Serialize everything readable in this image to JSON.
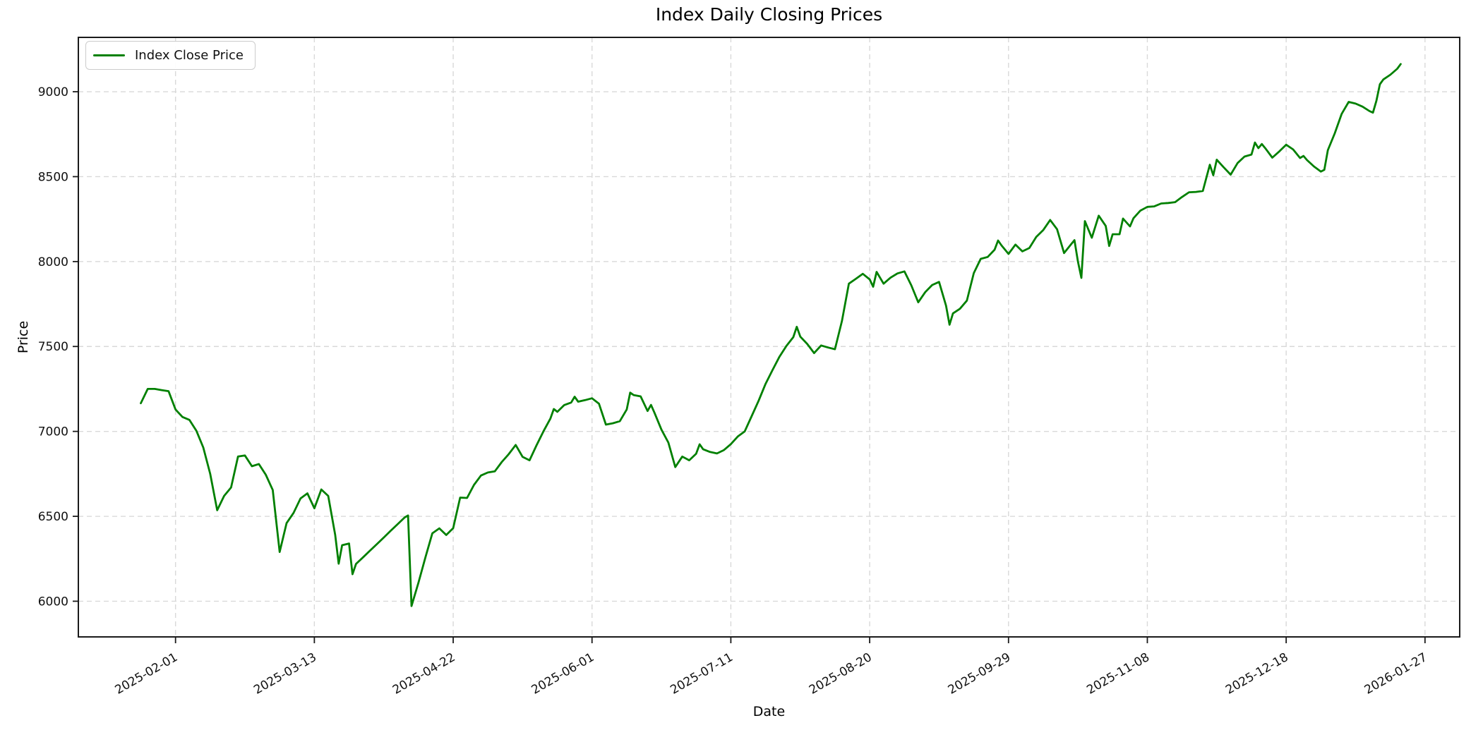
{
  "chart_data": {
    "type": "line",
    "title": "Index Daily Closing Prices",
    "xlabel": "Date",
    "ylabel": "Price",
    "legend_label": "Index Close Price",
    "legend_position": "upper left",
    "line_color": "#008000",
    "line_width": 2.8,
    "grid": "dashed",
    "grid_color": "#d9d9d9",
    "spine_color": "#1a1a1a",
    "background": "#ffffff",
    "ylim": [
      5790,
      9320
    ],
    "xlim": [
      "2025-01-04",
      "2026-02-06"
    ],
    "y_ticks": [
      6000,
      6500,
      7000,
      7500,
      8000,
      8500,
      9000
    ],
    "x_ticks": [
      "2025-02-01",
      "2025-03-13",
      "2025-04-22",
      "2025-06-01",
      "2025-07-11",
      "2025-08-20",
      "2025-09-29",
      "2025-11-08",
      "2025-12-18",
      "2026-01-27"
    ],
    "x_tick_rotation": 30,
    "series": [
      {
        "name": "Index Close Price",
        "points": [
          [
            "2025-01-22",
            7166
          ],
          [
            "2025-01-24",
            7250
          ],
          [
            "2025-01-26",
            7250
          ],
          [
            "2025-01-28",
            7243
          ],
          [
            "2025-01-30",
            7237
          ],
          [
            "2025-02-01",
            7129
          ],
          [
            "2025-02-03",
            7085
          ],
          [
            "2025-02-05",
            7068
          ],
          [
            "2025-02-07",
            7004
          ],
          [
            "2025-02-09",
            6905
          ],
          [
            "2025-02-11",
            6750
          ],
          [
            "2025-02-13",
            6536
          ],
          [
            "2025-02-15",
            6620
          ],
          [
            "2025-02-17",
            6670
          ],
          [
            "2025-02-19",
            6852
          ],
          [
            "2025-02-21",
            6858
          ],
          [
            "2025-02-23",
            6795
          ],
          [
            "2025-02-25",
            6808
          ],
          [
            "2025-02-27",
            6745
          ],
          [
            "2025-03-01",
            6655
          ],
          [
            "2025-03-03",
            6290
          ],
          [
            "2025-03-05",
            6460
          ],
          [
            "2025-03-07",
            6520
          ],
          [
            "2025-03-09",
            6605
          ],
          [
            "2025-03-11",
            6635
          ],
          [
            "2025-03-13",
            6547
          ],
          [
            "2025-03-15",
            6658
          ],
          [
            "2025-03-17",
            6620
          ],
          [
            "2025-03-19",
            6390
          ],
          [
            "2025-03-20",
            6221
          ],
          [
            "2025-03-21",
            6330
          ],
          [
            "2025-03-23",
            6340
          ],
          [
            "2025-03-24",
            6159
          ],
          [
            "2025-03-25",
            6220
          ],
          [
            "2025-03-27",
            6258
          ],
          [
            "2025-03-29",
            6297
          ],
          [
            "2025-03-31",
            6336
          ],
          [
            "2025-04-02",
            6375
          ],
          [
            "2025-04-04",
            6415
          ],
          [
            "2025-04-06",
            6454
          ],
          [
            "2025-04-08",
            6493
          ],
          [
            "2025-04-09",
            6505
          ],
          [
            "2025-04-10",
            5972
          ],
          [
            "2025-04-12",
            6110
          ],
          [
            "2025-04-14",
            6258
          ],
          [
            "2025-04-16",
            6400
          ],
          [
            "2025-04-18",
            6429
          ],
          [
            "2025-04-20",
            6390
          ],
          [
            "2025-04-22",
            6430
          ],
          [
            "2025-04-24",
            6610
          ],
          [
            "2025-04-26",
            6608
          ],
          [
            "2025-04-28",
            6685
          ],
          [
            "2025-04-30",
            6740
          ],
          [
            "2025-05-02",
            6758
          ],
          [
            "2025-05-04",
            6765
          ],
          [
            "2025-05-06",
            6820
          ],
          [
            "2025-05-08",
            6866
          ],
          [
            "2025-05-10",
            6920
          ],
          [
            "2025-05-12",
            6850
          ],
          [
            "2025-05-14",
            6830
          ],
          [
            "2025-05-16",
            6918
          ],
          [
            "2025-05-18",
            7000
          ],
          [
            "2025-05-20",
            7075
          ],
          [
            "2025-05-21",
            7132
          ],
          [
            "2025-05-22",
            7115
          ],
          [
            "2025-05-24",
            7155
          ],
          [
            "2025-05-26",
            7170
          ],
          [
            "2025-05-27",
            7204
          ],
          [
            "2025-05-28",
            7175
          ],
          [
            "2025-05-30",
            7184
          ],
          [
            "2025-06-01",
            7195
          ],
          [
            "2025-06-03",
            7163
          ],
          [
            "2025-06-05",
            7040
          ],
          [
            "2025-06-07",
            7048
          ],
          [
            "2025-06-09",
            7060
          ],
          [
            "2025-06-11",
            7129
          ],
          [
            "2025-06-12",
            7228
          ],
          [
            "2025-06-13",
            7214
          ],
          [
            "2025-06-15",
            7206
          ],
          [
            "2025-06-17",
            7120
          ],
          [
            "2025-06-18",
            7156
          ],
          [
            "2025-06-19",
            7110
          ],
          [
            "2025-06-21",
            7010
          ],
          [
            "2025-06-23",
            6934
          ],
          [
            "2025-06-25",
            6790
          ],
          [
            "2025-06-27",
            6852
          ],
          [
            "2025-06-29",
            6830
          ],
          [
            "2025-07-01",
            6868
          ],
          [
            "2025-07-02",
            6924
          ],
          [
            "2025-07-03",
            6895
          ],
          [
            "2025-07-05",
            6879
          ],
          [
            "2025-07-07",
            6870
          ],
          [
            "2025-07-09",
            6890
          ],
          [
            "2025-07-11",
            6925
          ],
          [
            "2025-07-13",
            6970
          ],
          [
            "2025-07-15",
            7000
          ],
          [
            "2025-07-17",
            7090
          ],
          [
            "2025-07-19",
            7180
          ],
          [
            "2025-07-21",
            7280
          ],
          [
            "2025-07-23",
            7361
          ],
          [
            "2025-07-25",
            7440
          ],
          [
            "2025-07-27",
            7503
          ],
          [
            "2025-07-29",
            7555
          ],
          [
            "2025-07-30",
            7616
          ],
          [
            "2025-07-31",
            7558
          ],
          [
            "2025-08-02",
            7515
          ],
          [
            "2025-08-04",
            7461
          ],
          [
            "2025-08-06",
            7506
          ],
          [
            "2025-08-08",
            7494
          ],
          [
            "2025-08-10",
            7484
          ],
          [
            "2025-08-12",
            7650
          ],
          [
            "2025-08-14",
            7870
          ],
          [
            "2025-08-16",
            7898
          ],
          [
            "2025-08-18",
            7928
          ],
          [
            "2025-08-20",
            7895
          ],
          [
            "2025-08-21",
            7852
          ],
          [
            "2025-08-22",
            7939
          ],
          [
            "2025-08-24",
            7870
          ],
          [
            "2025-08-26",
            7905
          ],
          [
            "2025-08-28",
            7930
          ],
          [
            "2025-08-30",
            7942
          ],
          [
            "2025-09-01",
            7860
          ],
          [
            "2025-09-03",
            7760
          ],
          [
            "2025-09-05",
            7820
          ],
          [
            "2025-09-07",
            7862
          ],
          [
            "2025-09-09",
            7880
          ],
          [
            "2025-09-11",
            7740
          ],
          [
            "2025-09-12",
            7628
          ],
          [
            "2025-09-13",
            7695
          ],
          [
            "2025-09-15",
            7722
          ],
          [
            "2025-09-17",
            7770
          ],
          [
            "2025-09-19",
            7932
          ],
          [
            "2025-09-21",
            8016
          ],
          [
            "2025-09-23",
            8027
          ],
          [
            "2025-09-25",
            8070
          ],
          [
            "2025-09-26",
            8124
          ],
          [
            "2025-09-27",
            8095
          ],
          [
            "2025-09-29",
            8045
          ],
          [
            "2025-10-01",
            8100
          ],
          [
            "2025-10-03",
            8060
          ],
          [
            "2025-10-05",
            8080
          ],
          [
            "2025-10-07",
            8145
          ],
          [
            "2025-10-09",
            8185
          ],
          [
            "2025-10-11",
            8245
          ],
          [
            "2025-10-13",
            8190
          ],
          [
            "2025-10-15",
            8050
          ],
          [
            "2025-10-17",
            8101
          ],
          [
            "2025-10-18",
            8126
          ],
          [
            "2025-10-19",
            8001
          ],
          [
            "2025-10-20",
            7904
          ],
          [
            "2025-10-21",
            8238
          ],
          [
            "2025-10-23",
            8140
          ],
          [
            "2025-10-25",
            8270
          ],
          [
            "2025-10-27",
            8210
          ],
          [
            "2025-10-28",
            8092
          ],
          [
            "2025-10-29",
            8161
          ],
          [
            "2025-10-31",
            8161
          ],
          [
            "2025-11-01",
            8253
          ],
          [
            "2025-11-02",
            8230
          ],
          [
            "2025-11-03",
            8207
          ],
          [
            "2025-11-04",
            8255
          ],
          [
            "2025-11-06",
            8300
          ],
          [
            "2025-11-08",
            8322
          ],
          [
            "2025-11-10",
            8325
          ],
          [
            "2025-11-12",
            8342
          ],
          [
            "2025-11-14",
            8345
          ],
          [
            "2025-11-16",
            8350
          ],
          [
            "2025-11-18",
            8380
          ],
          [
            "2025-11-20",
            8408
          ],
          [
            "2025-11-22",
            8410
          ],
          [
            "2025-11-24",
            8416
          ],
          [
            "2025-11-26",
            8570
          ],
          [
            "2025-11-27",
            8508
          ],
          [
            "2025-11-28",
            8600
          ],
          [
            "2025-11-30",
            8555
          ],
          [
            "2025-12-02",
            8512
          ],
          [
            "2025-12-04",
            8580
          ],
          [
            "2025-12-06",
            8618
          ],
          [
            "2025-12-08",
            8630
          ],
          [
            "2025-12-09",
            8701
          ],
          [
            "2025-12-10",
            8668
          ],
          [
            "2025-12-11",
            8692
          ],
          [
            "2025-12-12",
            8667
          ],
          [
            "2025-12-14",
            8612
          ],
          [
            "2025-12-16",
            8648
          ],
          [
            "2025-12-18",
            8688
          ],
          [
            "2025-12-20",
            8660
          ],
          [
            "2025-12-22",
            8610
          ],
          [
            "2025-12-23",
            8622
          ],
          [
            "2025-12-24",
            8598
          ],
          [
            "2025-12-26",
            8560
          ],
          [
            "2025-12-28",
            8530
          ],
          [
            "2025-12-29",
            8540
          ],
          [
            "2025-12-30",
            8656
          ],
          [
            "2026-01-01",
            8755
          ],
          [
            "2026-01-03",
            8870
          ],
          [
            "2026-01-05",
            8940
          ],
          [
            "2026-01-07",
            8930
          ],
          [
            "2026-01-09",
            8912
          ],
          [
            "2026-01-11",
            8886
          ],
          [
            "2026-01-12",
            8877
          ],
          [
            "2026-01-13",
            8947
          ],
          [
            "2026-01-14",
            9044
          ],
          [
            "2026-01-15",
            9072
          ],
          [
            "2026-01-17",
            9100
          ],
          [
            "2026-01-19",
            9135
          ],
          [
            "2026-01-20",
            9163
          ]
        ]
      }
    ]
  }
}
